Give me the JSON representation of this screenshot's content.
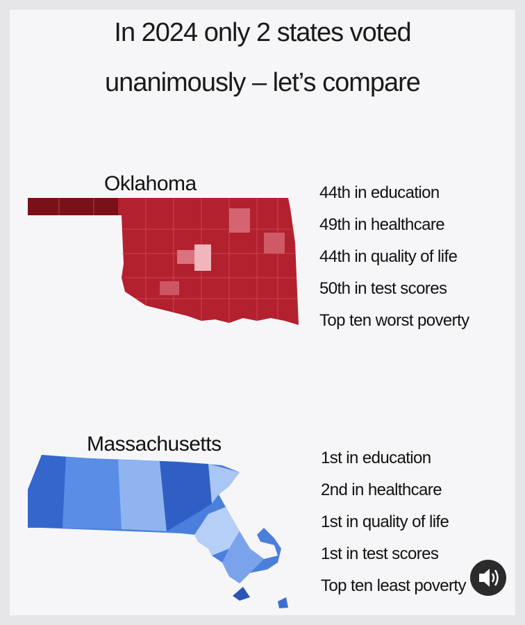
{
  "title": {
    "lines": [
      "In 2024 only 2 states voted",
      "unanimously – let’s compare"
    ]
  },
  "states": [
    {
      "name": "Oklahoma",
      "facts": [
        "44th in education",
        "49th in healthcare",
        "44th in quality of life",
        "50th in test scores",
        "Top ten worst poverty"
      ]
    },
    {
      "name": "Massachusetts",
      "facts": [
        "1st in education",
        "2nd in healthcare",
        "1st in quality of life",
        "1st in test scores",
        "Top ten least poverty"
      ]
    }
  ]
}
